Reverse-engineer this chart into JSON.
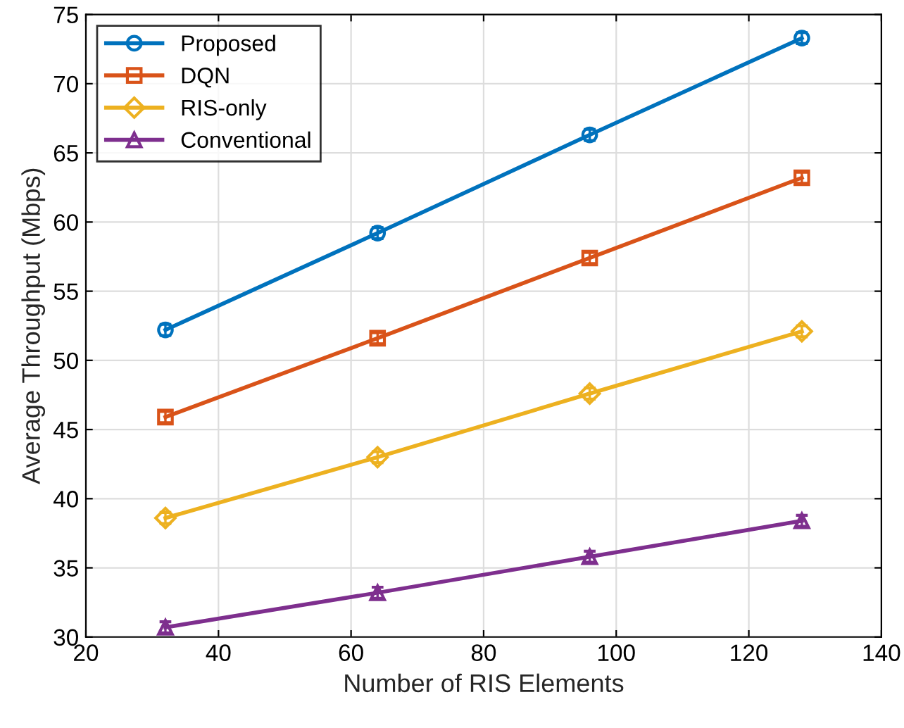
{
  "chart_data": {
    "type": "line",
    "xlabel": "Number of RIS Elements",
    "ylabel": "Average Throughput (Mbps)",
    "x": [
      32,
      64,
      96,
      128
    ],
    "xlim": [
      20,
      140
    ],
    "xticks": [
      20,
      40,
      60,
      80,
      100,
      120,
      140
    ],
    "ylim": [
      30,
      75
    ],
    "yticks": [
      30,
      35,
      40,
      45,
      50,
      55,
      60,
      65,
      70,
      75
    ],
    "grid": true,
    "legend": "top left",
    "line_style": "solid",
    "series": [
      {
        "name": "Proposed",
        "color": "#0072bd",
        "marker": "circle",
        "values": [
          52.2,
          59.2,
          66.3,
          73.3
        ],
        "errors": [
          0.4,
          0.4,
          0.4,
          0.4
        ]
      },
      {
        "name": "DQN",
        "color": "#d95319",
        "marker": "square",
        "values": [
          45.9,
          51.6,
          57.4,
          63.2
        ],
        "errors": [
          0.4,
          0.4,
          0.4,
          0.4
        ]
      },
      {
        "name": "RIS-only",
        "color": "#edb120",
        "marker": "diamond",
        "values": [
          38.6,
          43.0,
          47.6,
          52.1
        ],
        "errors": [
          0.4,
          0.4,
          0.4,
          0.4
        ]
      },
      {
        "name": "Conventional",
        "color": "#7e2f8e",
        "marker": "triangle",
        "values": [
          30.7,
          33.2,
          35.8,
          38.4
        ],
        "errors": [
          0.4,
          0.4,
          0.4,
          0.4
        ]
      }
    ]
  }
}
